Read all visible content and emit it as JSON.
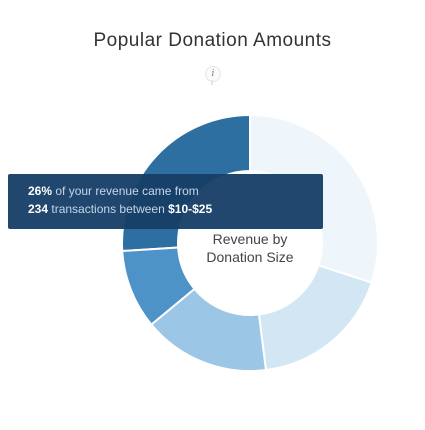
{
  "chart_data": {
    "type": "pie",
    "donut": true,
    "title": "Popular Donation Amounts",
    "center_label": [
      "Revenue by",
      "Donation Size"
    ],
    "series": [
      {
        "name": "Revenue by Donation Size",
        "slices": [
          {
            "label": "$10-$25",
            "value": 26,
            "transactions": 234,
            "color": "#2e6fa1"
          },
          {
            "label": "",
            "value": 10,
            "color": "#4d93c8"
          },
          {
            "label": "",
            "value": 16,
            "color": "#9cc6e6"
          },
          {
            "label": "",
            "value": 18,
            "color": "#d3e6f4"
          },
          {
            "label": "",
            "value": 30,
            "color": "#eef5fb"
          }
        ]
      }
    ],
    "tooltip": {
      "percent": "26%",
      "text1": " of your revenue came from",
      "count": "234",
      "text2": " transactions between ",
      "range": "$10-$25"
    }
  },
  "info_icon": "info-icon"
}
